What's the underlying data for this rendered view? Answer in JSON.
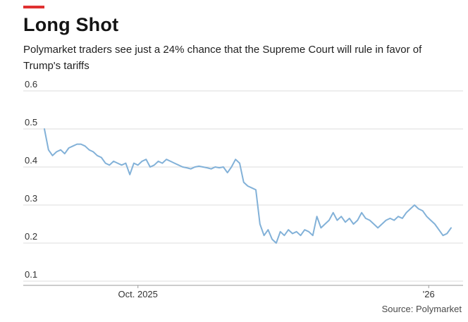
{
  "header": {
    "title": "Long Shot",
    "subtitle": "Polymarket traders see just a 24% chance that the Supreme Court will rule in favor of Trump's tariffs"
  },
  "footer": {
    "source": "Source: Polymarket"
  },
  "colors": {
    "accent": "#e03131",
    "line": "#82b1d8",
    "grid": "#dcdcdc",
    "axis": "#9a9a9a",
    "tick_label": "#333333",
    "background": "#ffffff"
  },
  "chart_data": {
    "type": "line",
    "title": "Long Shot",
    "subtitle": "Polymarket traders see just a 24% chance that the Supreme Court will rule in favor of Trump's tariffs",
    "source": "Source: Polymarket",
    "xlabel": "",
    "ylabel": "",
    "ylim": [
      0.1,
      0.6
    ],
    "grid": true,
    "yticks": [
      0.6,
      0.5,
      0.4,
      0.3,
      0.2,
      0.1
    ],
    "xticks": [
      {
        "label": "Oct. 2025",
        "pos": 0.23
      },
      {
        "label": "'26",
        "pos": 0.945
      }
    ],
    "values": [
      0.5,
      0.445,
      0.43,
      0.44,
      0.445,
      0.435,
      0.45,
      0.455,
      0.46,
      0.46,
      0.455,
      0.445,
      0.44,
      0.43,
      0.425,
      0.41,
      0.405,
      0.415,
      0.41,
      0.405,
      0.41,
      0.38,
      0.41,
      0.405,
      0.415,
      0.42,
      0.4,
      0.405,
      0.415,
      0.41,
      0.42,
      0.415,
      0.41,
      0.405,
      0.4,
      0.398,
      0.395,
      0.4,
      0.402,
      0.4,
      0.398,
      0.395,
      0.4,
      0.398,
      0.4,
      0.385,
      0.4,
      0.42,
      0.41,
      0.36,
      0.35,
      0.345,
      0.34,
      0.25,
      0.22,
      0.235,
      0.21,
      0.2,
      0.23,
      0.22,
      0.235,
      0.225,
      0.23,
      0.22,
      0.235,
      0.23,
      0.22,
      0.27,
      0.24,
      0.25,
      0.26,
      0.28,
      0.26,
      0.27,
      0.255,
      0.265,
      0.25,
      0.26,
      0.28,
      0.265,
      0.26,
      0.25,
      0.24,
      0.25,
      0.26,
      0.265,
      0.26,
      0.27,
      0.265,
      0.28,
      0.29,
      0.3,
      0.29,
      0.285,
      0.27,
      0.26,
      0.25,
      0.235,
      0.22,
      0.225,
      0.24
    ]
  }
}
